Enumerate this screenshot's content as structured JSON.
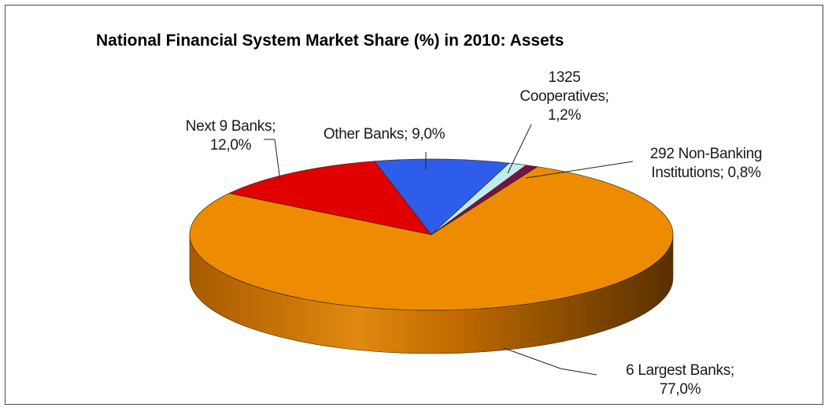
{
  "chart_data": {
    "type": "pie",
    "title": "National Financial System Market Share (%) in 2010: Assets",
    "slices": [
      {
        "name": "6 Largest Banks",
        "value": 77.0,
        "label_lines": [
          "6 Largest Banks;",
          "77,0%"
        ],
        "color": "#ED8C00",
        "side_dark": "#7A4300"
      },
      {
        "name": "Next 9 Banks",
        "value": 12.0,
        "label_lines": [
          "Next 9 Banks;",
          "12,0%"
        ],
        "color": "#E00000",
        "side_dark": "#7A0000"
      },
      {
        "name": "Other Banks",
        "value": 9.0,
        "label_lines": [
          "Other Banks; 9,0%"
        ],
        "color": "#2E5DEB",
        "side_dark": "#17307A"
      },
      {
        "name": "1325 Cooperatives",
        "value": 1.2,
        "label_lines": [
          "1325",
          "Cooperatives;",
          "1,2%"
        ],
        "color": "#BFEDEF",
        "side_dark": "#6F9EA0"
      },
      {
        "name": "292 Non-Banking Institutions",
        "value": 0.8,
        "label_lines": [
          "292 Non-Banking",
          "Institutions; 0,8%"
        ],
        "color": "#7A0F4A",
        "side_dark": "#3E0726"
      }
    ],
    "legend": "none",
    "style": "3d-pie"
  }
}
